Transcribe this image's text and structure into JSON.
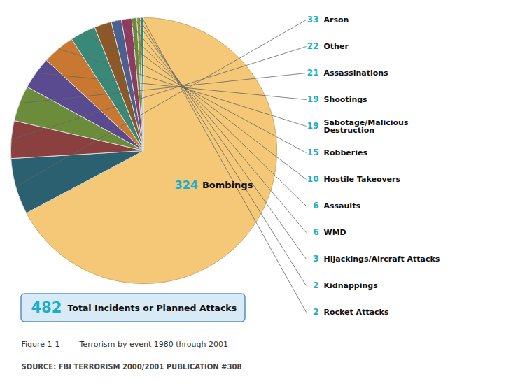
{
  "chart_data": {
    "type": "pie",
    "categories": [
      "Bombings",
      "Arson",
      "Other",
      "Assassinations",
      "Shootings",
      "Sabotage/Malicious\nDestruction",
      "Robberies",
      "Hostile Takeovers",
      "Assaults",
      "WMD",
      "Hijackings/Aircraft Attacks",
      "Kidnappings",
      "Rocket Attacks"
    ],
    "values": [
      324,
      33,
      22,
      21,
      19,
      19,
      15,
      10,
      6,
      6,
      3,
      2,
      2
    ],
    "colors": [
      "#F5C878",
      "#2A6070",
      "#8B4040",
      "#6B8C3A",
      "#5A4A90",
      "#C87830",
      "#3A8878",
      "#8C5828",
      "#4A6090",
      "#903A60",
      "#6A8C38",
      "#909038",
      "#388C60"
    ],
    "data_labels": true,
    "total": 482,
    "total_label": "Total Incidents or Planned Attacks",
    "caption": "Figure 1-1        Terrorism by event 1980 through 2001",
    "source": "SOURCE: FBI TERRORISM 2000/2001 PUBLICATION #308"
  }
}
